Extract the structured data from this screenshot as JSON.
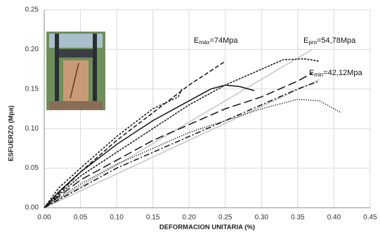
{
  "chart_data": {
    "type": "line",
    "x_label": "DEFORMACION UNITARIA (%)",
    "y_label": "ESFUERZO (Mpa)",
    "xlim": [
      0,
      0.45
    ],
    "ylim": [
      0,
      0.25
    ],
    "xticks": [
      {
        "value": 0,
        "label": "0.00"
      },
      {
        "value": 0.05,
        "label": "0.05"
      },
      {
        "value": 0.1,
        "label": "0.10"
      },
      {
        "value": 0.15,
        "label": "0.15"
      },
      {
        "value": 0.2,
        "label": "0.20"
      },
      {
        "value": 0.25,
        "label": "0.25"
      },
      {
        "value": 0.3,
        "label": "0.30"
      },
      {
        "value": 0.35,
        "label": "0.35"
      },
      {
        "value": 0.4,
        "label": "0.40"
      },
      {
        "value": 0.45,
        "label": "0.45"
      }
    ],
    "yticks": [
      {
        "value": 0,
        "label": "0.00"
      },
      {
        "value": 0.05,
        "label": "0.05"
      },
      {
        "value": 0.1,
        "label": "0.10"
      },
      {
        "value": 0.15,
        "label": "0.15"
      },
      {
        "value": 0.2,
        "label": "0.20"
      },
      {
        "value": 0.25,
        "label": "0.25"
      }
    ],
    "grid": true,
    "annotations": [
      {
        "base": "E",
        "sub": "máx",
        "text": "=74Mpa"
      },
      {
        "base": "E",
        "sub": "pro",
        "text": "=54,78Mpa"
      },
      {
        "base": "E",
        "sub": "min",
        "text": "=42,12Mpa"
      }
    ],
    "series": [
      {
        "color": "#c8c8c8",
        "style": "solid",
        "x": [
          0,
          0.37
        ],
        "values": [
          0,
          0.2
        ]
      },
      {
        "color": "#c8c8c8",
        "style": "solid",
        "x": [
          0,
          0.38
        ],
        "values": [
          0,
          0.162
        ]
      },
      {
        "color": "#111111",
        "style": "solid",
        "x": [
          0,
          0.02,
          0.05,
          0.1,
          0.15,
          0.2,
          0.23,
          0.25,
          0.27,
          0.29
        ],
        "values": [
          0,
          0.02,
          0.045,
          0.08,
          0.11,
          0.135,
          0.15,
          0.155,
          0.153,
          0.148
        ]
      },
      {
        "color": "#111111",
        "style": "shortdash",
        "x": [
          0,
          0.02,
          0.05,
          0.1,
          0.15,
          0.185,
          0.19
        ],
        "values": [
          0,
          0.025,
          0.05,
          0.09,
          0.125,
          0.14,
          0.15
        ]
      },
      {
        "color": "#111111",
        "style": "dashed",
        "x": [
          0,
          0.05,
          0.1,
          0.15,
          0.2,
          0.25
        ],
        "values": [
          0,
          0.045,
          0.085,
          0.12,
          0.155,
          0.185
        ]
      },
      {
        "color": "#111111",
        "style": "finedash",
        "x": [
          0,
          0.05,
          0.1,
          0.15,
          0.2,
          0.25,
          0.3,
          0.33,
          0.36,
          0.38
        ],
        "values": [
          0,
          0.04,
          0.07,
          0.1,
          0.13,
          0.155,
          0.175,
          0.187,
          0.188,
          0.185
        ]
      },
      {
        "color": "#111111",
        "style": "longdash",
        "x": [
          0,
          0.05,
          0.1,
          0.15,
          0.2,
          0.25,
          0.3,
          0.35,
          0.37
        ],
        "values": [
          0,
          0.035,
          0.06,
          0.085,
          0.105,
          0.125,
          0.14,
          0.16,
          0.17
        ]
      },
      {
        "color": "#111111",
        "style": "dotted",
        "x": [
          0,
          0.05,
          0.1,
          0.15,
          0.2,
          0.25,
          0.3,
          0.35,
          0.38,
          0.41
        ],
        "values": [
          0,
          0.03,
          0.055,
          0.075,
          0.095,
          0.11,
          0.125,
          0.137,
          0.135,
          0.12
        ]
      },
      {
        "color": "#111111",
        "style": "dashdot",
        "x": [
          0,
          0.05,
          0.1,
          0.15,
          0.2,
          0.25,
          0.3,
          0.35,
          0.38
        ],
        "values": [
          0,
          0.025,
          0.05,
          0.07,
          0.09,
          0.11,
          0.13,
          0.15,
          0.16
        ]
      }
    ]
  }
}
